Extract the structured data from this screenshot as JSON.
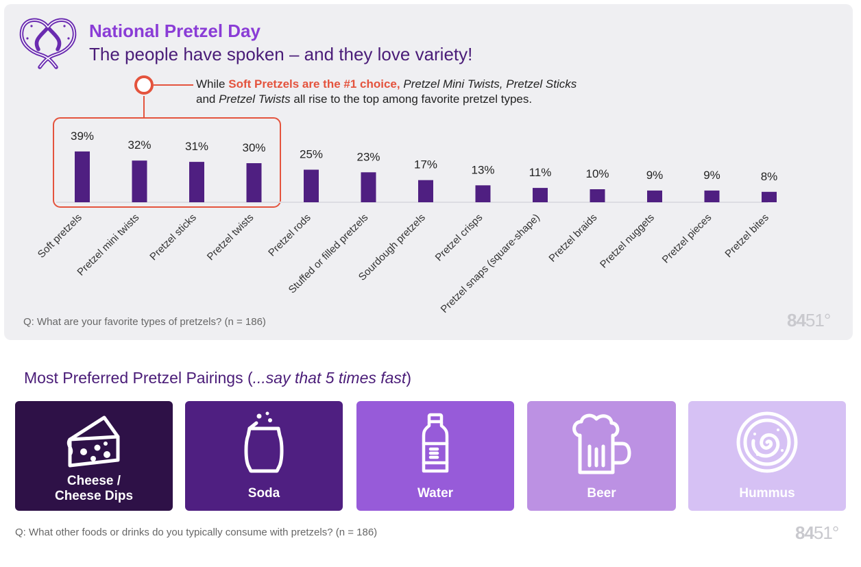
{
  "header": {
    "title": "National Pretzel Day",
    "subtitle": "The people have spoken – and they love variety!"
  },
  "callout": {
    "pre": "While ",
    "highlight": "Soft Pretzels are the #1 choice,",
    "item1": "Pretzel Mini Twists,",
    "item2": "Pretzel Sticks",
    "line2_pre": "and ",
    "item3": "Pretzel Twists",
    "line2_post": " all rise to the top among favorite pretzel types."
  },
  "chart_data": {
    "type": "bar",
    "title": "Favorite types of pretzels",
    "categories": [
      "Soft pretzels",
      "Pretzel mini twists",
      "Pretzel sticks",
      "Pretzel twists",
      "Pretzel rods",
      "Stuffed or filled pretzels",
      "Sourdough pretzels",
      "Pretzel crisps",
      "Pretzel snaps (square-shape)",
      "Pretzel braids",
      "Pretzel nuggets",
      "Pretzel pieces",
      "Pretzel bites"
    ],
    "values": [
      39,
      32,
      31,
      30,
      25,
      23,
      17,
      13,
      11,
      10,
      9,
      9,
      8
    ],
    "value_labels": [
      "39%",
      "32%",
      "31%",
      "30%",
      "25%",
      "23%",
      "17%",
      "13%",
      "11%",
      "10%",
      "9%",
      "9%",
      "8%"
    ],
    "highlighted_count": 4,
    "xlabel": "",
    "ylabel": "",
    "ylim": [
      0,
      40
    ],
    "grid": false,
    "bar_color": "#4f1f81",
    "highlight_color": "#e4533d",
    "baseline_color": "#dcdce2"
  },
  "chart_question": "Q: What are your favorite types of pretzels? (n = 186)",
  "brand": {
    "part1": "84",
    "part2": "51°"
  },
  "pairings": {
    "title_pre": "Most Preferred Pretzel Pairings (",
    "title_italic": "...say that 5 times fast",
    "title_post": ")",
    "cards": [
      {
        "label_line1": "Cheese /",
        "label_line2": "Cheese Dips",
        "icon": "cheese-icon",
        "color": "#2e1147"
      },
      {
        "label": "Soda",
        "icon": "soda-can-icon",
        "color": "#4f1f81"
      },
      {
        "label": "Water",
        "icon": "water-bottle-icon",
        "color": "#975bd9"
      },
      {
        "label": "Beer",
        "icon": "beer-mug-icon",
        "color": "#bc91e3"
      },
      {
        "label": "Hummus",
        "icon": "hummus-bowl-icon",
        "color": "#d6c1f4"
      }
    ],
    "question": "Q: What other foods or drinks do you typically consume with pretzels? (n = 186)"
  },
  "colors": {
    "accent_purple": "#8a3cd6",
    "dark_purple": "#4a1c78",
    "highlight_red": "#e4533d"
  }
}
